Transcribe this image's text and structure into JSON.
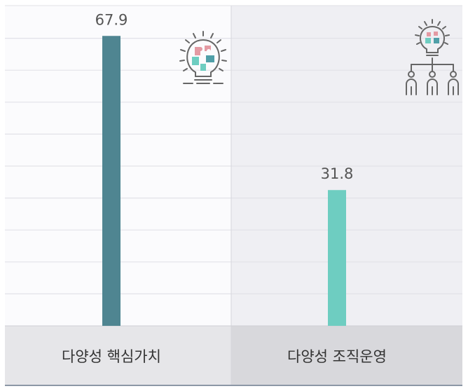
{
  "chart_data": {
    "type": "bar",
    "categories": [
      "다양성 핵심가치",
      "다양성 조직운영"
    ],
    "values": [
      67.9,
      31.8
    ],
    "value_labels": [
      "67.9",
      "31.8"
    ],
    "colors": [
      "#4f8591",
      "#6ecdc1"
    ],
    "panel_colors": [
      "#fbfbfd",
      "#efeff3"
    ],
    "footer_colors": [
      "#e6e6e9",
      "#d8d8dc"
    ],
    "ylim": [
      0,
      75
    ],
    "grid": true,
    "icons": [
      "lightbulb-puzzle-icon",
      "lightbulb-people-icon"
    ]
  }
}
